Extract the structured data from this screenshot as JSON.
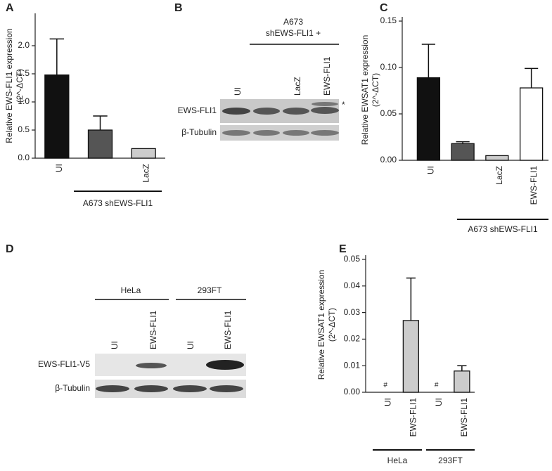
{
  "chart_data": [
    {
      "type": "bar",
      "panel_label": "A",
      "ylabel": "Relative EWS-FLI1 expression",
      "ylabel_unit": "(2^-ΔCT)",
      "categories": [
        "UI",
        null,
        "LacZ"
      ],
      "values": [
        1.48,
        0.5,
        0.17
      ],
      "errors": [
        0.64,
        0.25,
        null
      ],
      "colors": [
        "#111111",
        "#555555",
        "#cccccc"
      ],
      "ylim": [
        0,
        2.5
      ],
      "yticks": [
        {
          "value": 0,
          "label": "0.0"
        },
        0.5,
        {
          "value": 1,
          "label": "1.0"
        },
        1.5,
        {
          "value": 2,
          "label": "2.0"
        }
      ],
      "group_labels": [
        "A673 shEWS-FLI1"
      ]
    },
    {
      "type": "bar",
      "panel_label": "C",
      "ylabel": "Relative EWSAT1 expression",
      "ylabel_unit": "(2^-ΔCT)",
      "categories": [
        "UI",
        null,
        "LacZ",
        "EWS-FLI1"
      ],
      "values": [
        0.089,
        0.018,
        0.005,
        0.078
      ],
      "errors": [
        0.036,
        0.002,
        null,
        0.021
      ],
      "colors": [
        "#111111",
        "#555555",
        "#cccccc",
        "#ffffff"
      ],
      "ylim": [
        0,
        0.15
      ],
      "yticks": [
        {
          "value": 0,
          "label": "0.00"
        },
        0.05,
        {
          "value": 0.1,
          "label": "0.10"
        },
        0.15
      ],
      "group_labels": [
        "A673 shEWS-FLI1"
      ]
    },
    {
      "type": "bar",
      "panel_label": "E",
      "ylabel": "Relative EWSAT1 expression",
      "ylabel_unit": "(2^-ΔCT)",
      "categories": [
        "UI",
        "EWS-FLI1",
        "UI",
        "EWS-FLI1"
      ],
      "values": [
        null,
        0.027,
        null,
        0.008
      ],
      "errors": [
        null,
        0.016,
        null,
        0.002
      ],
      "markers": [
        "#",
        null,
        "#",
        null
      ],
      "colors": [
        "#cccccc",
        "#cccccc",
        "#cccccc",
        "#cccccc"
      ],
      "ylim": [
        0,
        0.05
      ],
      "yticks": [
        {
          "value": 0,
          "label": "0.00"
        },
        0.01,
        0.02,
        0.03,
        0.04,
        0.05
      ],
      "group_labels": [
        "HeLa",
        "293FT"
      ]
    }
  ],
  "blots": [
    {
      "panel_label": "B",
      "header": [
        "A673",
        "shEWS-FLI1 +"
      ],
      "lanes": [
        "UI",
        null,
        "LacZ",
        "EWS-FLI1"
      ],
      "rows": [
        "EWS-FLI1",
        "β-Tubulin"
      ],
      "note": "*"
    },
    {
      "panel_label": "D",
      "groups": [
        "HeLa",
        "293FT"
      ],
      "lanes": [
        "UI",
        "EWS-FLI1",
        "UI",
        "EWS-FLI1"
      ],
      "rows": [
        "EWS-FLI1-V5",
        "β-Tubulin"
      ]
    }
  ]
}
